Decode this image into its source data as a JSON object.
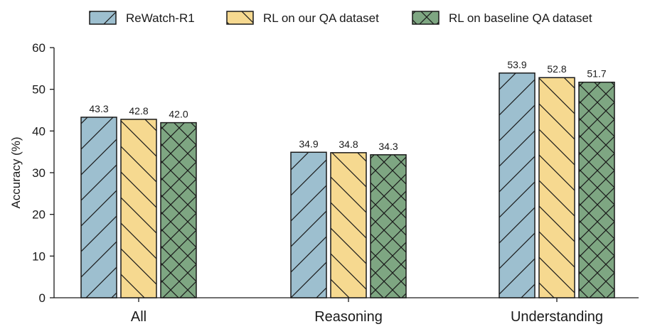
{
  "chart_data": {
    "type": "bar",
    "categories": [
      "All",
      "Reasoning",
      "Understanding"
    ],
    "series": [
      {
        "name": "ReWatch-R1",
        "values": [
          43.3,
          34.9,
          53.9
        ],
        "color": "#9dbfcf",
        "hatch": "diagonal"
      },
      {
        "name": "RL on our QA dataset",
        "values": [
          42.8,
          34.8,
          52.8
        ],
        "color": "#f6d990",
        "hatch": "back-diagonal"
      },
      {
        "name": "RL on baseline QA dataset",
        "values": [
          42.0,
          34.3,
          51.7
        ],
        "color": "#7ea682",
        "hatch": "cross"
      }
    ],
    "value_labels": [
      [
        "43.3",
        "34.9",
        "53.9"
      ],
      [
        "42.8",
        "34.8",
        "52.8"
      ],
      [
        "42.0",
        "34.3",
        "51.7"
      ]
    ],
    "ylabel": "Accuracy (%)",
    "ylim": [
      0,
      60
    ],
    "yticks": [
      "0",
      "10",
      "20",
      "30",
      "40",
      "50",
      "60"
    ],
    "grid": false,
    "legend_position": "top-center"
  }
}
